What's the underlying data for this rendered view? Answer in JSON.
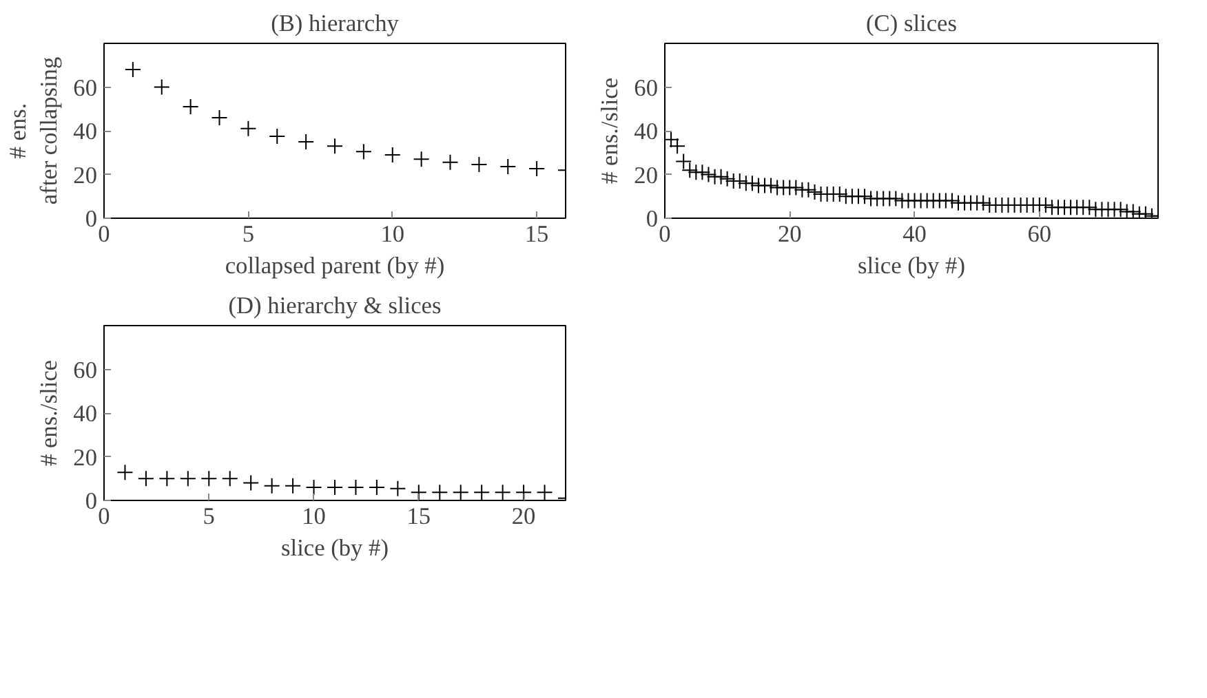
{
  "chart_data": [
    {
      "type": "scatter",
      "title": "(B) hierarchy",
      "xlabel": "collapsed parent (by #)",
      "ylabel": "# ens. after collapsing",
      "marker": "cross",
      "grid": false,
      "xlim": [
        0,
        16
      ],
      "ylim": [
        0,
        80
      ],
      "xticks": [
        0,
        5,
        10,
        15
      ],
      "yticks": [
        0,
        20,
        40,
        60
      ],
      "x": [
        1,
        2,
        3,
        4,
        5,
        6,
        7,
        8,
        9,
        10,
        11,
        12,
        13,
        14,
        15,
        16
      ],
      "series": [
        {
          "color": "#000000",
          "values": [
            68,
            60,
            51,
            46,
            41,
            37.5,
            35,
            33,
            30.5,
            29,
            27,
            25.6,
            24.6,
            23.6,
            22.7,
            22
          ]
        }
      ]
    },
    {
      "type": "scatter",
      "title": "(C) slices",
      "xlabel": "slice (by #)",
      "ylabel": "# ens./slice",
      "marker": "cross",
      "grid": false,
      "xlim": [
        0,
        79
      ],
      "ylim": [
        0,
        80
      ],
      "xticks": [
        0,
        20,
        40,
        60
      ],
      "yticks": [
        0,
        20,
        40,
        60
      ],
      "x": [
        1,
        2,
        3,
        4,
        5,
        6,
        7,
        8,
        9,
        10,
        11,
        12,
        13,
        14,
        15,
        16,
        17,
        18,
        19,
        20,
        21,
        22,
        23,
        24,
        25,
        26,
        27,
        28,
        29,
        30,
        31,
        32,
        33,
        34,
        35,
        36,
        37,
        38,
        39,
        40,
        41,
        42,
        43,
        44,
        45,
        46,
        47,
        48,
        49,
        50,
        51,
        52,
        53,
        54,
        55,
        56,
        57,
        58,
        59,
        60,
        61,
        62,
        63,
        64,
        65,
        66,
        67,
        68,
        69,
        70,
        71,
        72,
        73,
        74,
        75,
        76,
        77,
        78,
        79
      ],
      "series": [
        {
          "color": "#000000",
          "values": [
            36,
            33,
            26,
            22,
            21,
            21,
            20,
            19,
            19,
            18,
            17,
            17,
            16,
            16,
            15,
            15,
            15,
            14,
            14,
            14,
            14,
            13,
            13,
            12,
            11,
            11,
            11,
            11,
            10,
            10,
            10,
            10,
            9,
            9,
            9,
            9,
            9,
            8,
            8,
            8,
            8,
            8,
            8,
            8,
            8,
            8,
            7,
            7,
            7,
            7,
            7,
            6,
            6,
            6,
            6,
            6,
            6,
            6,
            6,
            6,
            6,
            5,
            5,
            5,
            5,
            5,
            5,
            5,
            4,
            4,
            4,
            4,
            4,
            3,
            3,
            2,
            2,
            1,
            1
          ]
        }
      ]
    },
    {
      "type": "scatter",
      "title": "(D) hierarchy & slices",
      "xlabel": "slice (by #)",
      "ylabel": "# ens./slice",
      "marker": "cross",
      "grid": false,
      "xlim": [
        0,
        22
      ],
      "ylim": [
        0,
        80
      ],
      "xticks": [
        0,
        5,
        10,
        15,
        20
      ],
      "yticks": [
        0,
        20,
        40,
        60
      ],
      "x": [
        1,
        2,
        3,
        4,
        5,
        6,
        7,
        8,
        9,
        10,
        11,
        12,
        13,
        14,
        15,
        16,
        17,
        18,
        19,
        20,
        21,
        22
      ],
      "series": [
        {
          "color": "#000000",
          "values": [
            12.8,
            10,
            10,
            10,
            10,
            10,
            8,
            6.7,
            6.7,
            6,
            6,
            6,
            6,
            5.4,
            3.7,
            3.7,
            3.7,
            3.7,
            3.7,
            3.7,
            3.7,
            1
          ]
        }
      ]
    }
  ]
}
